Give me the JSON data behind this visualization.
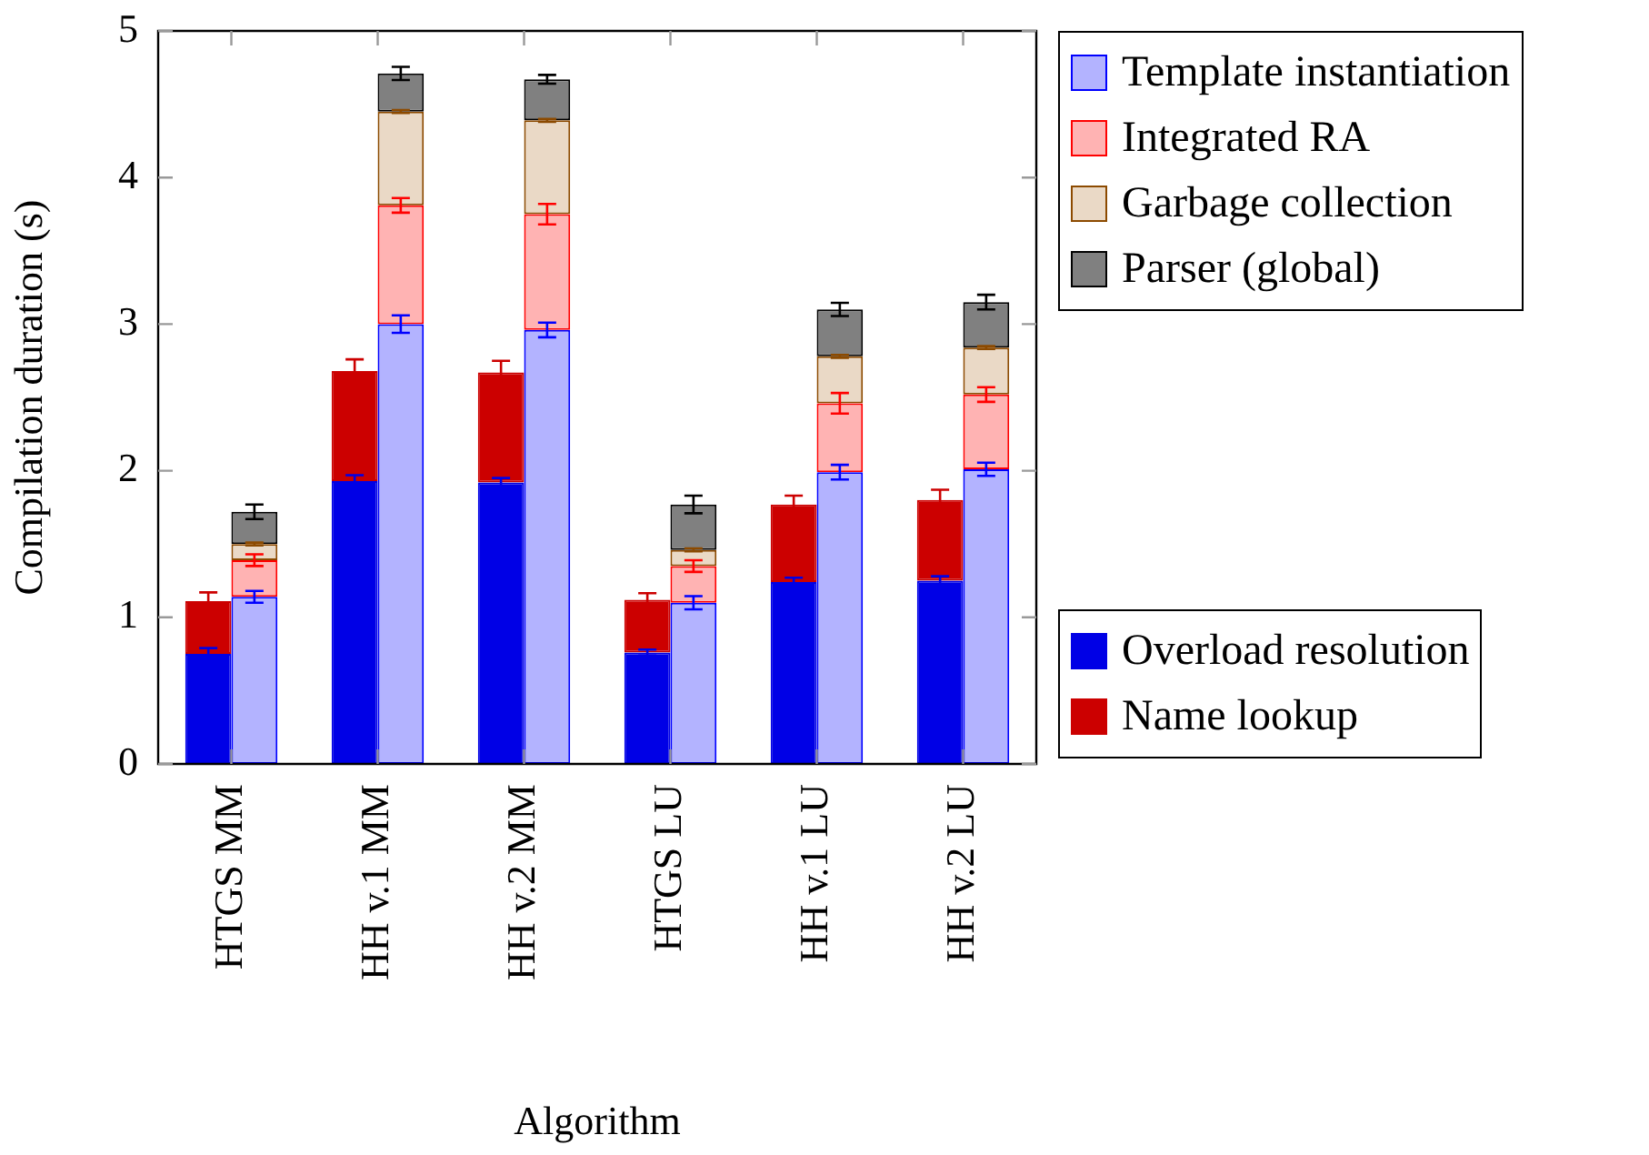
{
  "chart_data": {
    "type": "bar",
    "xlabel": "Algorithm",
    "ylabel": "Compilation duration (s)",
    "categories": [
      "HTGS MM",
      "HH v.1 MM",
      "HH v.2 MM",
      "HTGS LU",
      "HH v.1 LU",
      "HH v.2 LU"
    ],
    "ylim": [
      0,
      5
    ],
    "yticks": [
      0,
      1,
      2,
      3,
      4,
      5
    ],
    "legend": "right",
    "series": [
      {
        "name": "Overload resolution",
        "color": "#0000e6",
        "base": [
          0,
          0,
          0,
          0,
          0,
          0
        ],
        "values": [
          0.75,
          1.93,
          1.92,
          0.76,
          1.24,
          1.25
        ],
        "errors": [
          0.04,
          0.04,
          0.03,
          0.02,
          0.03,
          0.03
        ]
      },
      {
        "name": "Name lookup",
        "color": "#cc0000",
        "base": [
          0.75,
          1.93,
          1.92,
          0.76,
          1.24,
          1.25
        ],
        "values": [
          0.36,
          0.75,
          0.75,
          0.36,
          0.53,
          0.55
        ],
        "errors": [
          0.06,
          0.08,
          0.08,
          0.045,
          0.06,
          0.07
        ]
      },
      {
        "name": "Template instantiation",
        "color": "#b3b3ff",
        "base": [
          0,
          0,
          0,
          0,
          0,
          0
        ],
        "values": [
          1.14,
          3.0,
          2.96,
          1.1,
          1.99,
          2.01
        ],
        "errors": [
          0.04,
          0.06,
          0.05,
          0.045,
          0.05,
          0.045
        ]
      },
      {
        "name": "Integrated RA",
        "color": "#ffb3b3",
        "base": [
          1.14,
          3.0,
          2.96,
          1.1,
          1.99,
          2.01
        ],
        "values": [
          0.25,
          0.81,
          0.79,
          0.25,
          0.47,
          0.51
        ],
        "errors": [
          0.04,
          0.05,
          0.07,
          0.04,
          0.07,
          0.05
        ]
      },
      {
        "name": "Garbage collection",
        "color": "#ead9c6",
        "base": [
          1.39,
          3.81,
          3.75,
          1.35,
          2.46,
          2.52
        ],
        "values": [
          0.11,
          0.64,
          0.64,
          0.11,
          0.32,
          0.32
        ],
        "errors": [
          0.01,
          0.01,
          0.01,
          0.01,
          0.01,
          0.01
        ]
      },
      {
        "name": "Parser (global)",
        "color": "#808080",
        "base": [
          1.5,
          4.45,
          4.39,
          1.46,
          2.78,
          2.84
        ],
        "values": [
          0.22,
          0.26,
          0.28,
          0.31,
          0.32,
          0.31
        ],
        "errors": [
          0.05,
          0.045,
          0.03,
          0.06,
          0.045,
          0.05
        ]
      }
    ]
  }
}
